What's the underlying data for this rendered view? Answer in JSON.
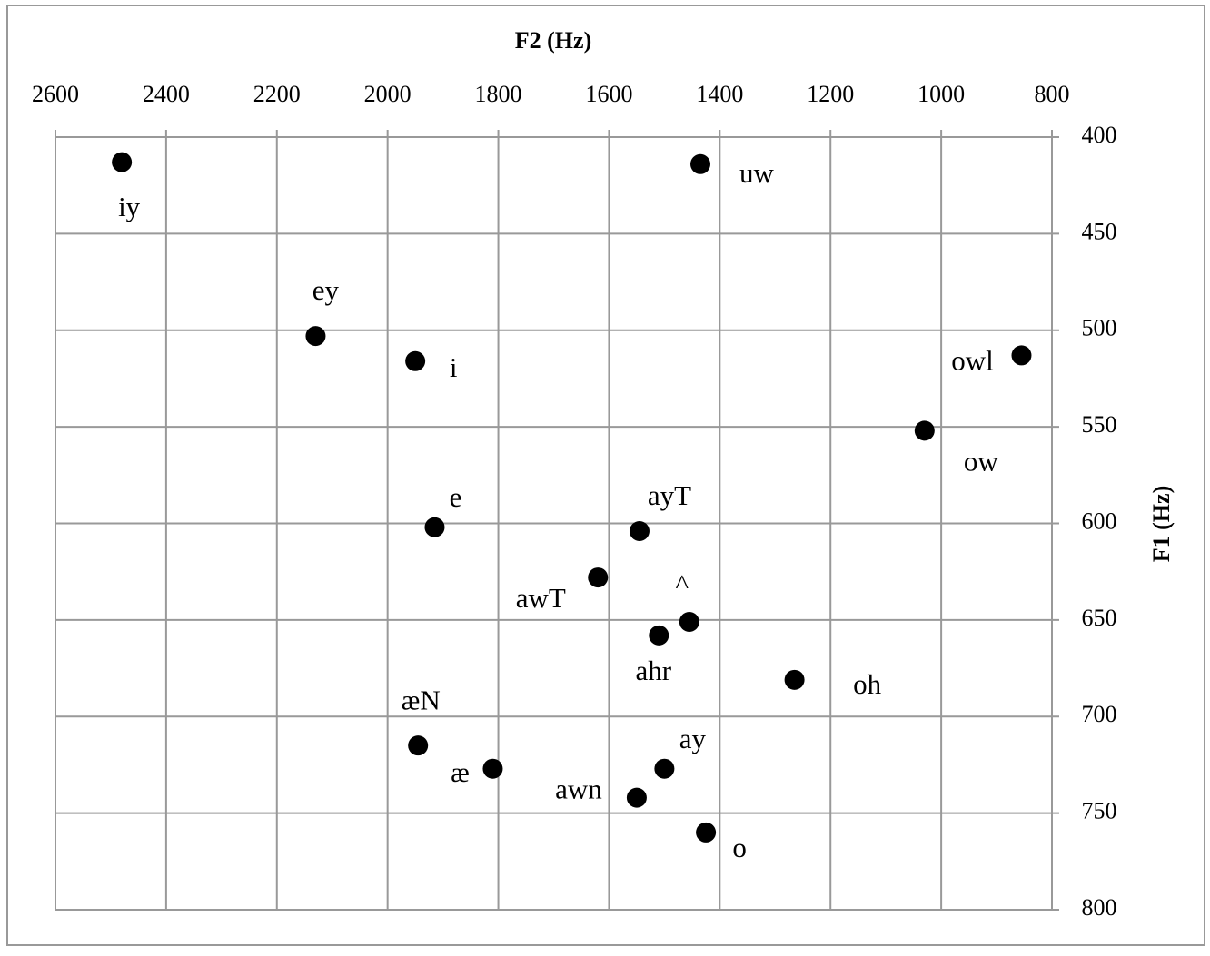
{
  "chart_data": {
    "type": "scatter",
    "x_label": "F2 (Hz)",
    "y_label": "F1 (Hz)",
    "labels": [
      "iy",
      "uw",
      "ey",
      "i",
      "owl",
      "ow",
      "e",
      "ayT",
      "awT",
      "^",
      "ahr",
      "oh",
      "æN",
      "æ",
      "ay",
      "awn",
      "o"
    ],
    "x": [
      2480,
      1435,
      2130,
      1950,
      855,
      1030,
      1915,
      1545,
      1620,
      1455,
      1510,
      1265,
      1945,
      1810,
      1500,
      1550,
      1425
    ],
    "y": [
      413,
      414,
      503,
      516,
      513,
      552,
      602,
      604,
      628,
      651,
      658,
      681,
      715,
      727,
      727,
      742,
      760
    ],
    "color": "#000000",
    "xlim": [
      800,
      2600
    ],
    "ylim": [
      400,
      800
    ],
    "x_reversed": true,
    "y_reversed": true,
    "xticks": [
      2600,
      2400,
      2200,
      2000,
      1800,
      1600,
      1400,
      1200,
      1000,
      800
    ],
    "yticks": [
      400,
      450,
      500,
      550,
      600,
      650,
      700,
      750,
      800
    ],
    "grid": true
  }
}
